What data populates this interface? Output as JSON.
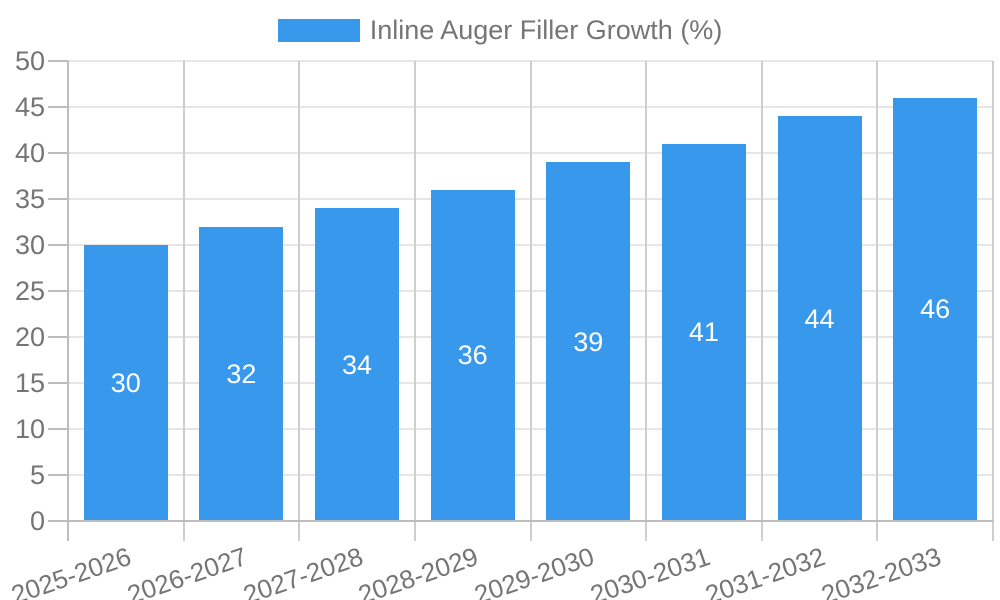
{
  "legend": {
    "label": "Inline Auger Filler Growth (%)"
  },
  "chart_data": {
    "type": "bar",
    "title": "Inline Auger Filler Growth (%)",
    "series": [
      {
        "name": "Inline Auger Filler Growth (%)",
        "values": [
          30,
          32,
          34,
          36,
          39,
          41,
          44,
          46
        ]
      }
    ],
    "categories": [
      "2025-2026",
      "2026-2027",
      "2027-2028",
      "2028-2029",
      "2029-2030",
      "2030-2031",
      "2031-2032",
      "2032-2033"
    ],
    "values": [
      30,
      32,
      34,
      36,
      39,
      41,
      44,
      46
    ],
    "value_labels": [
      "30",
      "32",
      "34",
      "36",
      "39",
      "41",
      "44",
      "46"
    ],
    "xlabel": "",
    "ylabel": "",
    "ylim": [
      0,
      50
    ],
    "yticks": [
      0,
      5,
      10,
      15,
      20,
      25,
      30,
      35,
      40,
      45,
      50
    ],
    "grid": true,
    "legend_position": "top-center",
    "value_label_position": "inside-center",
    "x_label_rotation_deg": -19,
    "colors": {
      "bar": "#3898ec",
      "grid_horizontal": "#e6e6e6",
      "grid_vertical": "#cecece",
      "axis": "#bdbdbd",
      "label_text": "#757575",
      "value_label": "#ffffff",
      "background": "#ffffff"
    }
  }
}
